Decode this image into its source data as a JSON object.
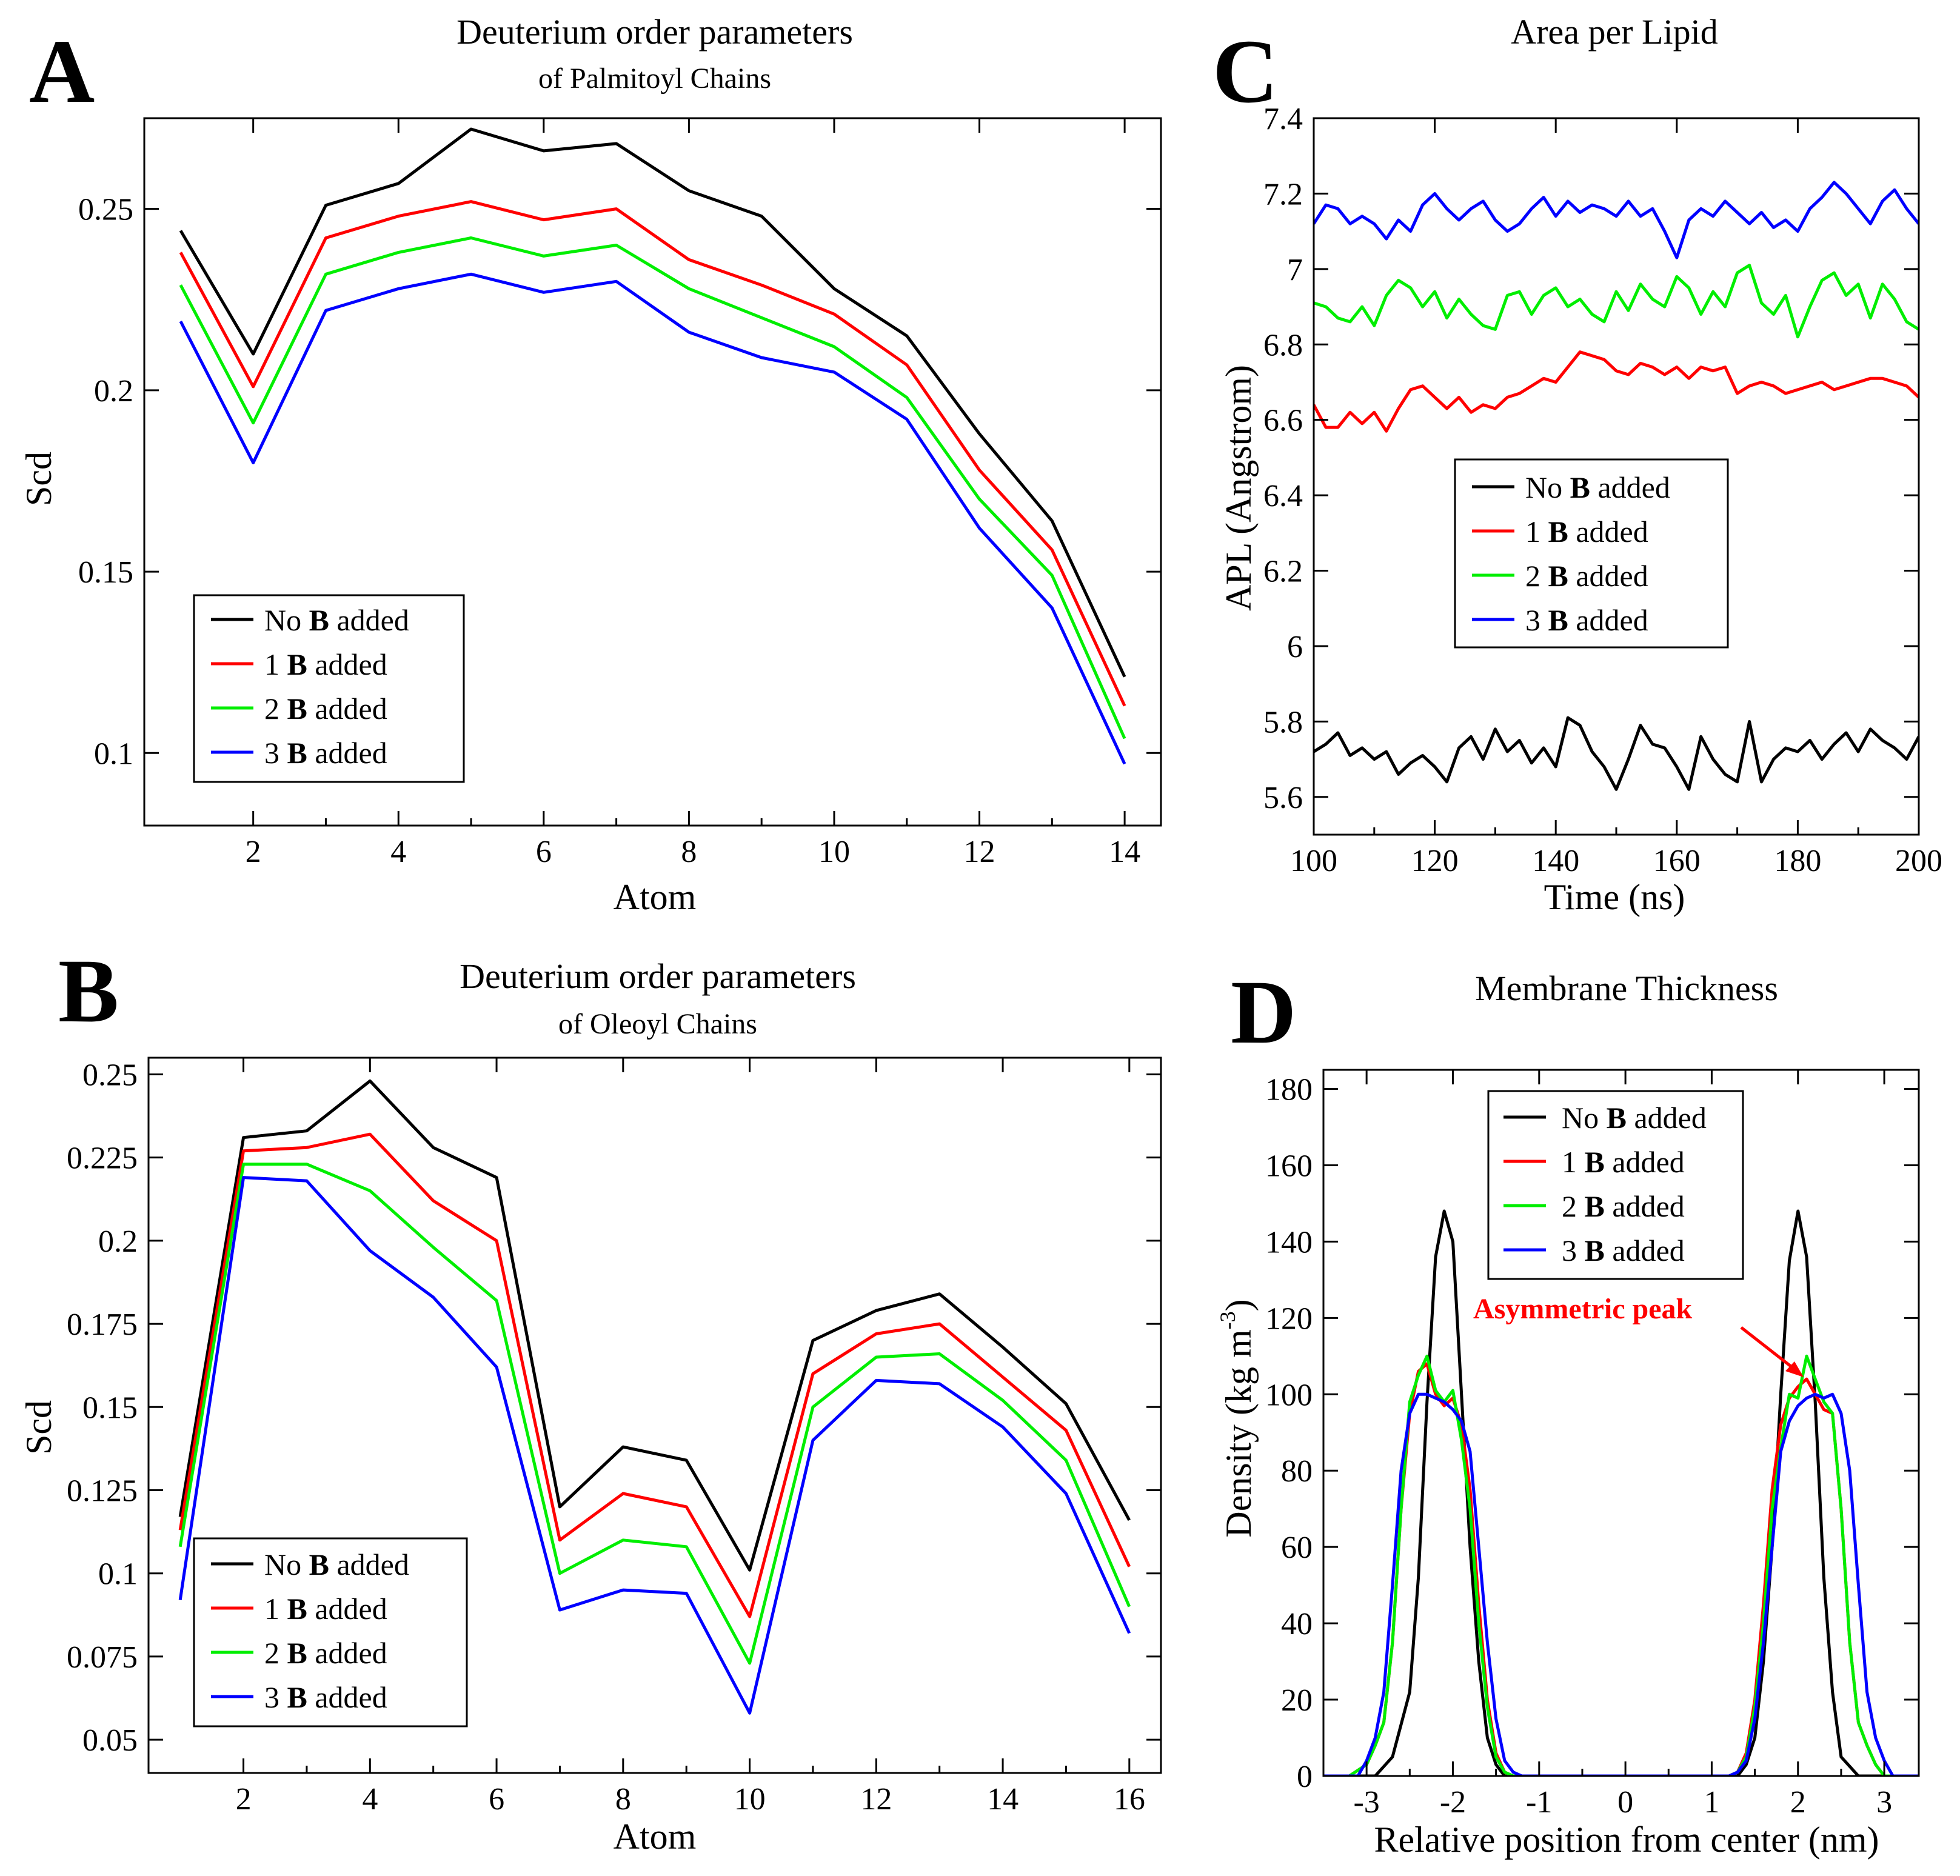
{
  "panels": {
    "A": {
      "letter": "A"
    },
    "B": {
      "letter": "B"
    },
    "C": {
      "letter": "C"
    },
    "D": {
      "letter": "D"
    }
  },
  "legend_labels": [
    {
      "prefix": "No ",
      "bold": "B",
      "suffix": " added"
    },
    {
      "prefix": "1 ",
      "bold": "B",
      "suffix": " added"
    },
    {
      "prefix": "2 ",
      "bold": "B",
      "suffix": " added"
    },
    {
      "prefix": "3 ",
      "bold": "B",
      "suffix": " added"
    }
  ],
  "colors": {
    "series": [
      "#000000",
      "#ff0000",
      "#00ee00",
      "#0000ff"
    ],
    "annotation": "#ff0000"
  },
  "chart_data": [
    {
      "id": "A",
      "type": "line",
      "title": "Deuterium order parameters",
      "subtitle": "of Palmitoyl Chains",
      "xlabel": "Atom",
      "ylabel": "Scd",
      "xlim": [
        0.5,
        14.5
      ],
      "ylim": [
        0.08,
        0.275
      ],
      "xticks": [
        2,
        4,
        6,
        8,
        10,
        12,
        14
      ],
      "yticks": [
        0.1,
        0.15,
        0.2,
        0.25
      ],
      "ytick_labels": [
        "0.1",
        "0.15",
        "0.2",
        "0.25"
      ],
      "legend_position": "bottom-left",
      "x": [
        1,
        2,
        3,
        4,
        5,
        6,
        7,
        8,
        9,
        10,
        11,
        12,
        13,
        14
      ],
      "series": [
        {
          "name": "No B added",
          "values": [
            0.244,
            0.21,
            0.251,
            0.257,
            0.272,
            0.266,
            0.268,
            0.255,
            0.248,
            0.228,
            0.215,
            0.188,
            0.164,
            0.121
          ]
        },
        {
          "name": "1 B added",
          "values": [
            0.238,
            0.201,
            0.242,
            0.248,
            0.252,
            0.247,
            0.25,
            0.236,
            0.229,
            0.221,
            0.207,
            0.178,
            0.156,
            0.113
          ]
        },
        {
          "name": "2 B added",
          "values": [
            0.229,
            0.191,
            0.232,
            0.238,
            0.242,
            0.237,
            0.24,
            0.228,
            0.22,
            0.212,
            0.198,
            0.17,
            0.149,
            0.104
          ]
        },
        {
          "name": "3 B added",
          "values": [
            0.219,
            0.18,
            0.222,
            0.228,
            0.232,
            0.227,
            0.23,
            0.216,
            0.209,
            0.205,
            0.192,
            0.162,
            0.14,
            0.097
          ]
        }
      ]
    },
    {
      "id": "B",
      "type": "line",
      "title": "Deuterium order parameters",
      "subtitle": "of Oleoyl Chains",
      "xlabel": "Atom",
      "ylabel": "Scd",
      "xlim": [
        0.5,
        16.5
      ],
      "ylim": [
        0.04,
        0.255
      ],
      "xticks": [
        2,
        4,
        6,
        8,
        10,
        12,
        14,
        16
      ],
      "yticks": [
        0.05,
        0.075,
        0.1,
        0.125,
        0.15,
        0.175,
        0.2,
        0.225,
        0.25
      ],
      "ytick_labels": [
        "0.05",
        "0.075",
        "0.1",
        "0.125",
        "0.15",
        "0.175",
        "0.2",
        "0.225",
        "0.25"
      ],
      "legend_position": "bottom-left",
      "x": [
        1,
        2,
        3,
        4,
        5,
        6,
        7,
        8,
        9,
        10,
        11,
        12,
        13,
        14,
        15,
        16
      ],
      "series": [
        {
          "name": "No B added",
          "values": [
            0.117,
            0.231,
            0.233,
            0.248,
            0.228,
            0.219,
            0.12,
            0.138,
            0.134,
            0.101,
            0.17,
            0.179,
            0.184,
            0.168,
            0.151,
            0.116
          ]
        },
        {
          "name": "1 B added",
          "values": [
            0.113,
            0.227,
            0.228,
            0.232,
            0.212,
            0.2,
            0.11,
            0.124,
            0.12,
            0.087,
            0.16,
            0.172,
            0.175,
            0.159,
            0.143,
            0.102
          ]
        },
        {
          "name": "2 B added",
          "values": [
            0.108,
            0.223,
            0.223,
            0.215,
            0.198,
            0.182,
            0.1,
            0.11,
            0.108,
            0.073,
            0.15,
            0.165,
            0.166,
            0.152,
            0.134,
            0.09
          ]
        },
        {
          "name": "3 B added",
          "values": [
            0.092,
            0.219,
            0.218,
            0.197,
            0.183,
            0.162,
            0.089,
            0.095,
            0.094,
            0.058,
            0.14,
            0.158,
            0.157,
            0.144,
            0.124,
            0.082
          ]
        }
      ]
    },
    {
      "id": "C",
      "type": "line",
      "title": "Area per Lipid",
      "subtitle": "",
      "xlabel": "Time (ns)",
      "ylabel": "APL (Angstrom)",
      "xlim": [
        100,
        200
      ],
      "ylim": [
        5.5,
        7.4
      ],
      "xticks": [
        100,
        120,
        140,
        160,
        180,
        200
      ],
      "yticks": [
        5.6,
        5.8,
        6,
        6.2,
        6.4,
        6.6,
        6.8,
        7,
        7.2,
        7.4
      ],
      "ytick_labels": [
        "5.6",
        "5.8",
        "6",
        "6.2",
        "6.4",
        "6.6",
        "6.8",
        "7",
        "7.2",
        "7.4"
      ],
      "legend_position": "middle-left",
      "x": [
        100,
        102,
        104,
        106,
        108,
        110,
        112,
        114,
        116,
        118,
        120,
        122,
        124,
        126,
        128,
        130,
        132,
        134,
        136,
        138,
        140,
        142,
        144,
        146,
        148,
        150,
        152,
        154,
        156,
        158,
        160,
        162,
        164,
        166,
        168,
        170,
        172,
        174,
        176,
        178,
        180,
        182,
        184,
        186,
        188,
        190,
        192,
        194,
        196,
        198,
        200
      ],
      "series": [
        {
          "name": "No B added",
          "values": [
            5.72,
            5.74,
            5.77,
            5.71,
            5.73,
            5.7,
            5.72,
            5.66,
            5.69,
            5.71,
            5.68,
            5.64,
            5.73,
            5.76,
            5.7,
            5.78,
            5.72,
            5.75,
            5.69,
            5.73,
            5.68,
            5.81,
            5.79,
            5.72,
            5.68,
            5.62,
            5.7,
            5.79,
            5.74,
            5.73,
            5.68,
            5.62,
            5.76,
            5.7,
            5.66,
            5.64,
            5.8,
            5.64,
            5.7,
            5.73,
            5.72,
            5.75,
            5.7,
            5.74,
            5.77,
            5.72,
            5.78,
            5.75,
            5.73,
            5.7,
            5.76
          ]
        },
        {
          "name": "1 B added",
          "values": [
            6.64,
            6.58,
            6.58,
            6.62,
            6.59,
            6.62,
            6.57,
            6.63,
            6.68,
            6.69,
            6.66,
            6.63,
            6.66,
            6.62,
            6.64,
            6.63,
            6.66,
            6.67,
            6.69,
            6.71,
            6.7,
            6.74,
            6.78,
            6.77,
            6.76,
            6.73,
            6.72,
            6.75,
            6.74,
            6.72,
            6.74,
            6.71,
            6.74,
            6.73,
            6.74,
            6.67,
            6.69,
            6.7,
            6.69,
            6.67,
            6.68,
            6.69,
            6.7,
            6.68,
            6.69,
            6.7,
            6.71,
            6.71,
            6.7,
            6.69,
            6.66
          ]
        },
        {
          "name": "2 B added",
          "values": [
            6.91,
            6.9,
            6.87,
            6.86,
            6.9,
            6.85,
            6.93,
            6.97,
            6.95,
            6.9,
            6.94,
            6.87,
            6.92,
            6.88,
            6.85,
            6.84,
            6.93,
            6.94,
            6.88,
            6.93,
            6.95,
            6.9,
            6.92,
            6.88,
            6.86,
            6.94,
            6.89,
            6.96,
            6.92,
            6.9,
            6.98,
            6.95,
            6.88,
            6.94,
            6.9,
            6.99,
            7.01,
            6.91,
            6.88,
            6.93,
            6.82,
            6.9,
            6.97,
            6.99,
            6.93,
            6.96,
            6.87,
            6.96,
            6.92,
            6.86,
            6.84
          ]
        },
        {
          "name": "3 B added",
          "values": [
            7.12,
            7.17,
            7.16,
            7.12,
            7.14,
            7.12,
            7.08,
            7.13,
            7.1,
            7.17,
            7.2,
            7.16,
            7.13,
            7.16,
            7.18,
            7.13,
            7.1,
            7.12,
            7.16,
            7.19,
            7.14,
            7.18,
            7.15,
            7.17,
            7.16,
            7.14,
            7.18,
            7.14,
            7.16,
            7.1,
            7.03,
            7.13,
            7.16,
            7.14,
            7.18,
            7.15,
            7.12,
            7.15,
            7.11,
            7.13,
            7.1,
            7.16,
            7.19,
            7.23,
            7.2,
            7.16,
            7.12,
            7.18,
            7.21,
            7.16,
            7.12
          ]
        }
      ]
    },
    {
      "id": "D",
      "type": "line",
      "title": "Membrane Thickness",
      "subtitle": "",
      "xlabel": "Relative position from center (nm)",
      "ylabel": "Density (kg m",
      "ylabel_sup": "-3",
      "ylabel_tail": ")",
      "xlim": [
        -3.5,
        3.4
      ],
      "ylim": [
        0,
        185
      ],
      "xticks": [
        -3,
        -2,
        -1,
        0,
        1,
        2,
        3
      ],
      "yticks": [
        0,
        20,
        40,
        60,
        80,
        100,
        120,
        140,
        160,
        180
      ],
      "ytick_labels": [
        "0",
        "20",
        "40",
        "60",
        "80",
        "100",
        "120",
        "140",
        "160",
        "180"
      ],
      "legend_position": "top-left",
      "annotation": {
        "text": "Asymmetric peak",
        "x": 2.0,
        "y": 104
      },
      "series": [
        {
          "name": "No B added",
          "x": [
            -3.5,
            -2.9,
            -2.7,
            -2.5,
            -2.4,
            -2.3,
            -2.2,
            -2.1,
            -2.0,
            -1.9,
            -1.8,
            -1.7,
            -1.6,
            -1.5,
            -1.4,
            -1.3,
            -1.2,
            1.2,
            1.3,
            1.4,
            1.5,
            1.6,
            1.7,
            1.8,
            1.9,
            2.0,
            2.1,
            2.2,
            2.3,
            2.4,
            2.5,
            2.7,
            2.9,
            3.4
          ],
          "values": [
            0,
            0,
            5,
            22,
            52,
            98,
            136,
            148,
            140,
            100,
            60,
            30,
            10,
            3,
            0,
            0,
            0,
            0,
            0,
            3,
            10,
            30,
            60,
            100,
            135,
            148,
            136,
            98,
            52,
            22,
            5,
            0,
            0,
            0
          ]
        },
        {
          "name": "1 B added",
          "x": [
            -3.5,
            -3.2,
            -3.0,
            -2.9,
            -2.8,
            -2.7,
            -2.6,
            -2.5,
            -2.4,
            -2.3,
            -2.2,
            -2.1,
            -2.0,
            -1.9,
            -1.8,
            -1.7,
            -1.6,
            -1.5,
            -1.4,
            -1.3,
            -1.2,
            1.2,
            1.3,
            1.4,
            1.5,
            1.6,
            1.7,
            1.8,
            1.9,
            2.0,
            2.1,
            2.2,
            2.3,
            2.4,
            2.5,
            2.6,
            2.7,
            2.8,
            2.9,
            3.0,
            3.4
          ],
          "values": [
            0,
            0,
            3,
            8,
            14,
            35,
            70,
            95,
            106,
            108,
            100,
            97,
            99,
            92,
            75,
            45,
            20,
            6,
            1,
            0,
            0,
            0,
            1,
            6,
            20,
            45,
            75,
            92,
            99,
            102,
            104,
            100,
            96,
            95,
            70,
            35,
            14,
            8,
            3,
            0,
            0
          ]
        },
        {
          "name": "2 B added",
          "x": [
            -3.5,
            -3.2,
            -3.0,
            -2.9,
            -2.8,
            -2.7,
            -2.6,
            -2.5,
            -2.4,
            -2.3,
            -2.2,
            -2.1,
            -2.0,
            -1.9,
            -1.8,
            -1.7,
            -1.6,
            -1.5,
            -1.4,
            -1.3,
            -1.2,
            1.2,
            1.3,
            1.4,
            1.5,
            1.6,
            1.7,
            1.8,
            1.9,
            2.0,
            2.1,
            2.2,
            2.3,
            2.4,
            2.5,
            2.6,
            2.7,
            2.8,
            2.9,
            3.0,
            3.4
          ],
          "values": [
            0,
            0,
            3,
            8,
            14,
            35,
            70,
            98,
            105,
            110,
            101,
            98,
            101,
            88,
            70,
            40,
            18,
            5,
            1,
            0,
            0,
            0,
            1,
            5,
            18,
            40,
            70,
            86,
            100,
            99,
            110,
            104,
            98,
            95,
            70,
            35,
            14,
            8,
            3,
            0,
            0
          ]
        },
        {
          "name": "3 B added",
          "x": [
            -3.5,
            -3.1,
            -3.0,
            -2.9,
            -2.8,
            -2.7,
            -2.6,
            -2.5,
            -2.4,
            -2.3,
            -2.2,
            -2.1,
            -2.0,
            -1.9,
            -1.8,
            -1.7,
            -1.6,
            -1.5,
            -1.4,
            -1.3,
            -1.2,
            -1.1,
            1.1,
            1.2,
            1.3,
            1.4,
            1.5,
            1.6,
            1.7,
            1.8,
            1.9,
            2.0,
            2.1,
            2.2,
            2.3,
            2.4,
            2.5,
            2.6,
            2.7,
            2.8,
            2.9,
            3.0,
            3.1,
            3.4
          ],
          "values": [
            0,
            0,
            4,
            10,
            22,
            50,
            80,
            95,
            100,
            100,
            99,
            98,
            96,
            93,
            85,
            60,
            35,
            15,
            4,
            1,
            0,
            0,
            0,
            0,
            1,
            4,
            15,
            35,
            60,
            85,
            93,
            97,
            99,
            100,
            99,
            100,
            95,
            80,
            50,
            22,
            10,
            4,
            0,
            0
          ]
        }
      ]
    }
  ]
}
